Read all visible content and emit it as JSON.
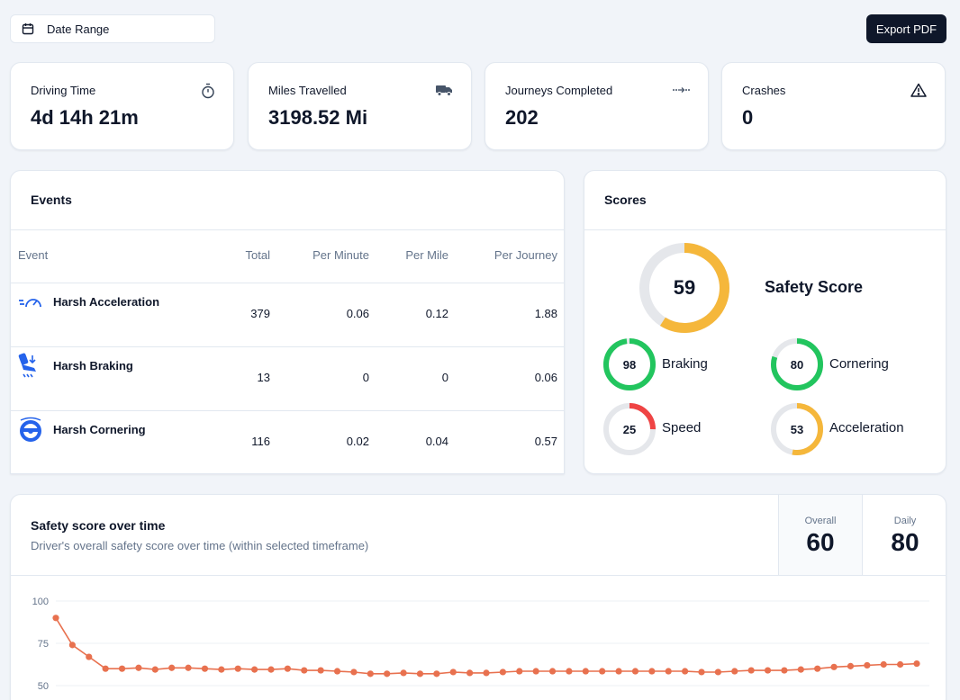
{
  "toolbar": {
    "date_range_label": "Date Range",
    "export_label": "Export PDF"
  },
  "stats": [
    {
      "label": "Driving Time",
      "value": "4d 14h 21m",
      "icon": "stopwatch-icon"
    },
    {
      "label": "Miles Travelled",
      "value": "3198.52 Mi",
      "icon": "truck-icon"
    },
    {
      "label": "Journeys Completed",
      "value": "202",
      "icon": "route-icon"
    },
    {
      "label": "Crashes",
      "value": "0",
      "icon": "warning-icon"
    }
  ],
  "events": {
    "title": "Events",
    "columns": [
      "Event",
      "Total",
      "Per Minute",
      "Per Mile",
      "Per Journey"
    ],
    "rows": [
      {
        "name": "Harsh Acceleration",
        "total": "379",
        "per_minute": "0.06",
        "per_mile": "0.12",
        "per_journey": "1.88",
        "icon": "speedometer-icon"
      },
      {
        "name": "Harsh Braking",
        "total": "13",
        "per_minute": "0",
        "per_mile": "0",
        "per_journey": "0.06",
        "icon": "brake-pedal-icon"
      },
      {
        "name": "Harsh Cornering",
        "total": "116",
        "per_minute": "0.02",
        "per_mile": "0.04",
        "per_journey": "0.57",
        "icon": "steering-wheel-icon"
      }
    ]
  },
  "scores": {
    "title": "Scores",
    "safety": {
      "label": "Safety Score",
      "value": 59
    },
    "items": [
      {
        "label": "Braking",
        "value": 98,
        "color": "#22c55e"
      },
      {
        "label": "Cornering",
        "value": 80,
        "color": "#22c55e"
      },
      {
        "label": "Speed",
        "value": 25,
        "color": "#ef4444"
      },
      {
        "label": "Acceleration",
        "value": 53,
        "color": "#f5b73b"
      }
    ],
    "safety_color": "#f5b73b",
    "track_color": "#e5e7eb"
  },
  "trend": {
    "title": "Safety score over time",
    "subtitle": "Driver's overall safety score over time (within selected timeframe)",
    "overall_label": "Overall",
    "overall_value": "60",
    "daily_label": "Daily",
    "daily_value": "80"
  },
  "chart_data": {
    "type": "line",
    "yticks": [
      "100",
      "75",
      "50"
    ],
    "ylim": [
      50,
      100
    ],
    "color": "#e8714f",
    "values": [
      90,
      74,
      67,
      60,
      60,
      60.5,
      59.5,
      60.5,
      60.5,
      60,
      59.5,
      60,
      59.5,
      59.5,
      60,
      59,
      59,
      58.5,
      58,
      57,
      57,
      57.5,
      57,
      57,
      58,
      57.5,
      57.5,
      58,
      58.5,
      58.5,
      58.5,
      58.5,
      58.5,
      58.5,
      58.5,
      58.5,
      58.5,
      58.5,
      58.5,
      58,
      58,
      58.5,
      59,
      59,
      59,
      59.5,
      60,
      61,
      61.5,
      62,
      62.5,
      62.5,
      63
    ]
  }
}
